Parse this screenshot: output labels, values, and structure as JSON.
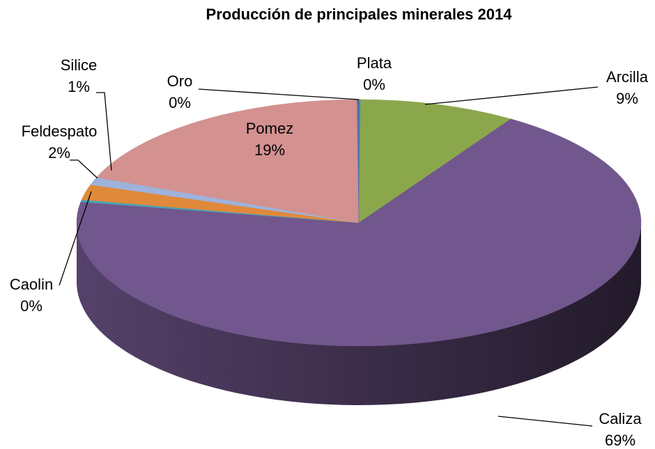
{
  "chart_data": {
    "type": "pie3d",
    "title": "Producción de principales minerales 2014",
    "categories": [
      "Plata",
      "Arcilla",
      "Caliza",
      "Caolin",
      "Feldespato",
      "Silice",
      "Pomez",
      "Oro"
    ],
    "values": [
      0.1,
      9,
      69,
      0.3,
      2,
      1,
      19,
      0.1
    ],
    "value_labels": [
      "0%",
      "9%",
      "69%",
      "0%",
      "2%",
      "1%",
      "19%",
      "0%"
    ],
    "colors": [
      "#4f81bd",
      "#8ba74c",
      "#71578d",
      "#4aa3b3",
      "#e0893b",
      "#9db3dc",
      "#d3918f",
      "#4f6fa8"
    ]
  }
}
